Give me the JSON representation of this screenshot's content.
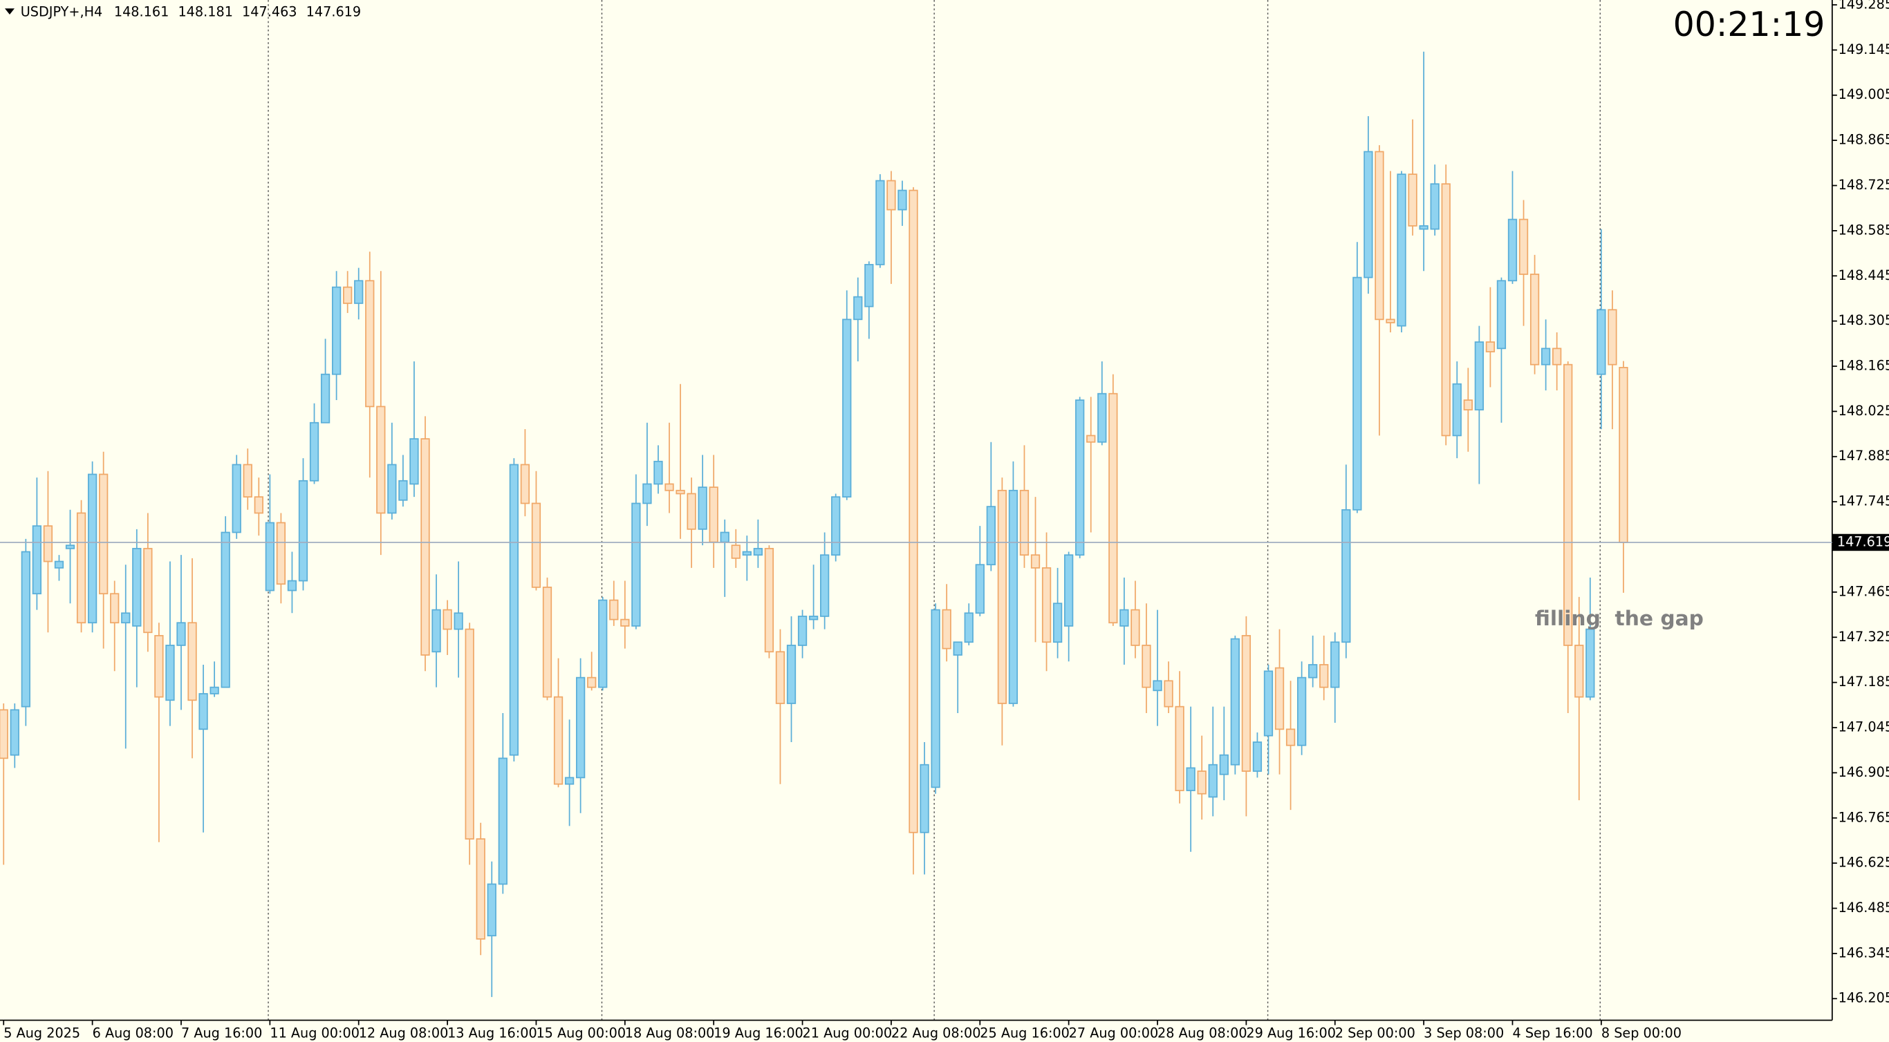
{
  "header": {
    "symbol": "USDJPY+,H4"
  },
  "timer": "00:21:19",
  "chart_data": {
    "type": "candlestick",
    "annotation": "filling  the gap",
    "bull_color": "#8fd3f0",
    "bull_edge": "#5aaed8",
    "bear_color": "#fde0c0",
    "bear_edge": "#f0a868",
    "timer_color": "#ff0000",
    "ylim": [
      146.138,
      149.3
    ],
    "yticks": [
      149.285,
      149.145,
      149.005,
      148.865,
      148.725,
      148.585,
      148.445,
      148.305,
      148.165,
      148.025,
      147.885,
      147.745,
      147.465,
      147.325,
      147.185,
      147.045,
      146.905,
      146.765,
      146.625,
      146.485,
      146.345,
      146.205
    ],
    "categories": [
      "5 Aug 2025",
      null,
      null,
      null,
      null,
      null,
      null,
      null,
      "6 Aug 08:00",
      null,
      null,
      null,
      null,
      null,
      null,
      null,
      "7 Aug 16:00",
      null,
      null,
      null,
      null,
      null,
      null,
      null,
      "11 Aug 00:00",
      null,
      null,
      null,
      null,
      null,
      null,
      null,
      "12 Aug 08:00",
      null,
      null,
      null,
      null,
      null,
      null,
      null,
      "13 Aug 16:00",
      null,
      null,
      null,
      null,
      null,
      null,
      null,
      "15 Aug 00:00",
      null,
      null,
      null,
      null,
      null,
      null,
      null,
      "18 Aug 08:00",
      null,
      null,
      null,
      null,
      null,
      null,
      null,
      "19 Aug 16:00",
      null,
      null,
      null,
      null,
      null,
      null,
      null,
      "21 Aug 00:00",
      null,
      null,
      null,
      null,
      null,
      null,
      null,
      "22 Aug 08:00",
      null,
      null,
      null,
      null,
      null,
      null,
      null,
      "25 Aug 16:00",
      null,
      null,
      null,
      null,
      null,
      null,
      null,
      "27 Aug 00:00",
      null,
      null,
      null,
      null,
      null,
      null,
      null,
      "28 Aug 08:00",
      null,
      null,
      null,
      null,
      null,
      null,
      null,
      "29 Aug 16:00",
      null,
      null,
      null,
      null,
      null,
      null,
      null,
      "2 Sep 00:00",
      null,
      null,
      null,
      null,
      null,
      null,
      null,
      "3 Sep 08:00",
      null,
      null,
      null,
      null,
      null,
      null,
      null,
      "4 Sep 16:00",
      null,
      null,
      null,
      null,
      null,
      null,
      null,
      "8 Sep 00:00",
      null,
      null
    ],
    "open": [
      147.1,
      146.96,
      147.11,
      147.46,
      147.67,
      147.54,
      147.6,
      147.71,
      147.37,
      147.83,
      147.46,
      147.37,
      147.36,
      147.6,
      147.33,
      147.13,
      147.3,
      147.37,
      147.04,
      147.15,
      147.17,
      147.65,
      147.86,
      147.76,
      147.47,
      147.68,
      147.47,
      147.5,
      147.81,
      147.99,
      148.14,
      148.41,
      148.36,
      148.43,
      148.04,
      147.71,
      147.75,
      147.8,
      147.94,
      147.28,
      147.41,
      147.35,
      147.35,
      146.7,
      146.4,
      146.56,
      146.96,
      147.86,
      147.74,
      147.48,
      147.14,
      146.87,
      146.89,
      147.2,
      147.17,
      147.44,
      147.38,
      147.36,
      147.74,
      147.8,
      147.8,
      147.78,
      147.77,
      147.66,
      147.79,
      147.62,
      147.61,
      147.58,
      147.58,
      147.6,
      147.28,
      147.12,
      147.3,
      147.38,
      147.39,
      147.58,
      147.76,
      148.31,
      148.35,
      148.48,
      148.74,
      148.65,
      148.71,
      146.72,
      146.86,
      147.41,
      147.27,
      147.31,
      147.4,
      147.55,
      147.78,
      147.12,
      147.78,
      147.58,
      147.54,
      147.31,
      147.36,
      147.58,
      147.95,
      147.93,
      148.08,
      147.36,
      147.41,
      147.3,
      147.16,
      147.19,
      147.11,
      146.85,
      146.91,
      146.83,
      146.9,
      146.93,
      147.33,
      146.91,
      147.02,
      147.23,
      147.04,
      146.99,
      147.2,
      147.24,
      147.17,
      147.31,
      147.72,
      148.44,
      148.83,
      148.31,
      148.29,
      148.76,
      148.59,
      148.59,
      148.73,
      147.95,
      148.06,
      148.03,
      148.24,
      148.22,
      148.43,
      148.62,
      148.45,
      148.17,
      148.22,
      148.17,
      147.3,
      147.14,
      148.14,
      148.34,
      148.161
    ],
    "high": [
      147.12,
      147.12,
      147.63,
      147.82,
      147.84,
      147.58,
      147.72,
      147.75,
      147.87,
      147.9,
      147.5,
      147.55,
      147.66,
      147.71,
      147.37,
      147.56,
      147.58,
      147.57,
      147.24,
      147.25,
      147.7,
      147.89,
      147.91,
      147.82,
      147.83,
      147.71,
      147.59,
      147.88,
      148.05,
      148.25,
      148.46,
      148.46,
      148.47,
      148.52,
      148.46,
      147.99,
      147.89,
      148.18,
      148.01,
      147.52,
      147.44,
      147.56,
      147.37,
      146.75,
      146.63,
      147.09,
      147.88,
      147.97,
      147.84,
      147.51,
      147.26,
      147.07,
      147.26,
      147.28,
      147.45,
      147.5,
      147.5,
      147.83,
      147.99,
      147.92,
      147.99,
      148.11,
      147.82,
      147.89,
      147.89,
      147.69,
      147.66,
      147.64,
      147.69,
      147.61,
      147.35,
      147.39,
      147.41,
      147.55,
      147.65,
      147.77,
      148.4,
      148.44,
      148.49,
      148.76,
      148.77,
      148.74,
      148.72,
      147.0,
      147.43,
      147.49,
      147.31,
      147.43,
      147.67,
      147.93,
      147.82,
      147.87,
      147.92,
      147.76,
      147.65,
      147.54,
      147.59,
      148.07,
      148.07,
      148.18,
      148.14,
      147.51,
      147.5,
      147.43,
      147.41,
      147.25,
      147.22,
      147.11,
      147.02,
      147.11,
      147.11,
      147.33,
      147.39,
      147.03,
      147.24,
      147.35,
      147.19,
      147.25,
      147.33,
      147.33,
      147.34,
      147.86,
      148.55,
      148.94,
      148.85,
      148.77,
      148.77,
      148.93,
      149.14,
      148.79,
      148.79,
      148.18,
      148.16,
      148.29,
      148.41,
      148.44,
      148.77,
      148.68,
      148.51,
      148.31,
      148.27,
      148.18,
      147.45,
      147.51,
      148.59,
      148.4,
      148.181
    ],
    "low": [
      146.62,
      146.92,
      147.05,
      147.41,
      147.34,
      147.5,
      147.43,
      147.34,
      147.34,
      147.29,
      147.22,
      146.98,
      147.17,
      147.28,
      146.69,
      147.05,
      147.1,
      146.95,
      146.72,
      147.14,
      147.17,
      147.63,
      147.72,
      147.64,
      147.46,
      147.43,
      147.4,
      147.47,
      147.8,
      147.99,
      148.06,
      148.33,
      148.31,
      147.82,
      147.58,
      147.69,
      147.73,
      147.76,
      147.22,
      147.17,
      147.27,
      147.2,
      146.62,
      146.34,
      146.21,
      146.53,
      146.94,
      147.7,
      147.47,
      147.13,
      146.86,
      146.74,
      146.78,
      147.16,
      147.16,
      147.36,
      147.29,
      147.35,
      147.67,
      147.77,
      147.71,
      147.63,
      147.54,
      147.61,
      147.54,
      147.45,
      147.54,
      147.5,
      147.54,
      147.26,
      146.87,
      147.0,
      147.26,
      147.35,
      147.35,
      147.56,
      147.75,
      148.18,
      148.25,
      148.47,
      148.42,
      148.6,
      146.59,
      146.59,
      146.84,
      147.25,
      147.09,
      147.3,
      147.39,
      147.53,
      146.99,
      147.11,
      147.54,
      147.31,
      147.22,
      147.26,
      147.25,
      147.57,
      147.65,
      147.92,
      147.36,
      147.24,
      147.26,
      147.09,
      147.05,
      147.09,
      146.81,
      146.66,
      146.76,
      146.77,
      146.82,
      146.9,
      146.77,
      146.89,
      146.9,
      146.9,
      146.79,
      146.96,
      147.17,
      147.13,
      147.06,
      147.26,
      147.71,
      148.39,
      147.95,
      148.27,
      148.27,
      148.57,
      148.46,
      148.57,
      147.92,
      147.88,
      147.9,
      147.8,
      148.1,
      147.99,
      148.42,
      148.29,
      148.14,
      148.09,
      148.09,
      147.09,
      146.82,
      147.13,
      147.97,
      147.97,
      147.463
    ],
    "close": [
      146.95,
      147.1,
      147.59,
      147.67,
      147.56,
      147.56,
      147.61,
      147.37,
      147.83,
      147.46,
      147.37,
      147.4,
      147.6,
      147.34,
      147.14,
      147.3,
      147.37,
      147.13,
      147.15,
      147.17,
      147.65,
      147.86,
      147.76,
      147.71,
      147.68,
      147.49,
      147.5,
      147.81,
      147.99,
      148.14,
      148.41,
      148.36,
      148.43,
      148.04,
      147.71,
      147.86,
      147.81,
      147.94,
      147.27,
      147.41,
      147.35,
      147.4,
      146.7,
      146.39,
      146.56,
      146.95,
      147.86,
      147.74,
      147.48,
      147.14,
      146.87,
      146.89,
      147.2,
      147.17,
      147.44,
      147.38,
      147.36,
      147.74,
      147.8,
      147.87,
      147.78,
      147.77,
      147.66,
      147.79,
      147.62,
      147.65,
      147.57,
      147.59,
      147.6,
      147.28,
      147.12,
      147.3,
      147.39,
      147.39,
      147.58,
      147.76,
      148.31,
      148.38,
      148.48,
      148.74,
      148.65,
      148.71,
      146.72,
      146.93,
      147.41,
      147.29,
      147.31,
      147.4,
      147.55,
      147.73,
      147.12,
      147.78,
      147.58,
      147.54,
      147.31,
      147.43,
      147.58,
      148.06,
      147.93,
      148.08,
      147.37,
      147.41,
      147.3,
      147.17,
      147.19,
      147.11,
      146.85,
      146.92,
      146.84,
      146.93,
      146.96,
      147.32,
      146.91,
      147.0,
      147.22,
      147.04,
      146.99,
      147.2,
      147.24,
      147.17,
      147.31,
      147.72,
      148.44,
      148.83,
      148.31,
      148.3,
      148.76,
      148.6,
      148.6,
      148.73,
      147.95,
      148.11,
      148.03,
      148.24,
      148.21,
      148.43,
      148.62,
      148.45,
      148.17,
      148.22,
      148.17,
      147.3,
      147.14,
      147.35,
      148.34,
      148.17,
      147.619
    ]
  }
}
